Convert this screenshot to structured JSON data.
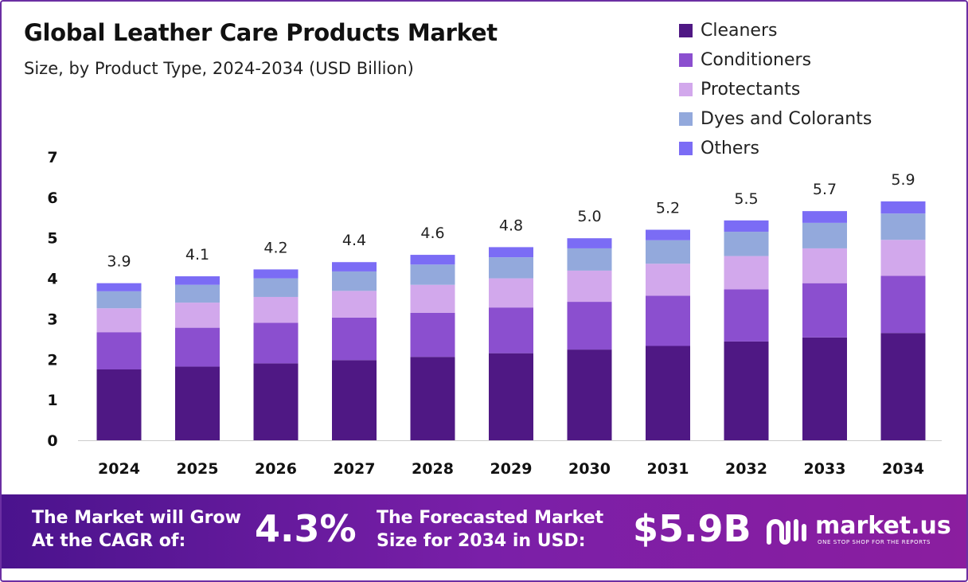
{
  "header": {
    "title": "Global Leather Care Products Market",
    "subtitle": "Size, by Product Type, 2024-2034 (USD Billion)"
  },
  "colors": {
    "Cleaners": "#4f1884",
    "Conditioners": "#8b4fcf",
    "Protectants": "#d2a8ec",
    "Dyes and Colorants": "#93a9dc",
    "Others": "#7b6cf5",
    "frame": "#6b2fa3",
    "banner_start": "#4a138d",
    "banner_end": "#8b1e9f"
  },
  "chart_data": {
    "type": "bar",
    "stacked": true,
    "categories": [
      "2024",
      "2025",
      "2026",
      "2027",
      "2028",
      "2029",
      "2030",
      "2031",
      "2032",
      "2033",
      "2034"
    ],
    "series": [
      {
        "name": "Cleaners",
        "values": [
          1.75,
          1.82,
          1.9,
          1.98,
          2.06,
          2.15,
          2.24,
          2.33,
          2.44,
          2.54,
          2.65
        ]
      },
      {
        "name": "Conditioners",
        "values": [
          0.92,
          0.96,
          1.0,
          1.05,
          1.09,
          1.13,
          1.18,
          1.24,
          1.29,
          1.34,
          1.41
        ]
      },
      {
        "name": "Protectants",
        "values": [
          0.59,
          0.62,
          0.64,
          0.66,
          0.69,
          0.72,
          0.77,
          0.79,
          0.82,
          0.86,
          0.89
        ]
      },
      {
        "name": "Dyes and Colorants",
        "values": [
          0.42,
          0.44,
          0.46,
          0.48,
          0.5,
          0.52,
          0.55,
          0.58,
          0.6,
          0.63,
          0.65
        ]
      },
      {
        "name": "Others",
        "values": [
          0.2,
          0.21,
          0.22,
          0.23,
          0.24,
          0.25,
          0.25,
          0.26,
          0.28,
          0.29,
          0.3
        ]
      }
    ],
    "totals": [
      "3.9",
      "4.1",
      "4.2",
      "4.4",
      "4.6",
      "4.8",
      "5.0",
      "5.2",
      "5.5",
      "5.7",
      "5.9"
    ],
    "yticks": [
      "0",
      "1",
      "2",
      "3",
      "4",
      "5",
      "6",
      "7"
    ],
    "ylim": [
      0,
      7
    ],
    "grid": false,
    "legend_position": "top-right"
  },
  "banner": {
    "cagr_line1": "The Market will Grow",
    "cagr_line2": "At the CAGR of:",
    "cagr_value": "4.3%",
    "forecast_line1": "The Forecasted Market",
    "forecast_line2": "Size for 2034 in USD:",
    "forecast_value": "$5.9B",
    "logo_text": "market.us",
    "logo_tagline": "ONE STOP SHOP FOR THE REPORTS"
  }
}
